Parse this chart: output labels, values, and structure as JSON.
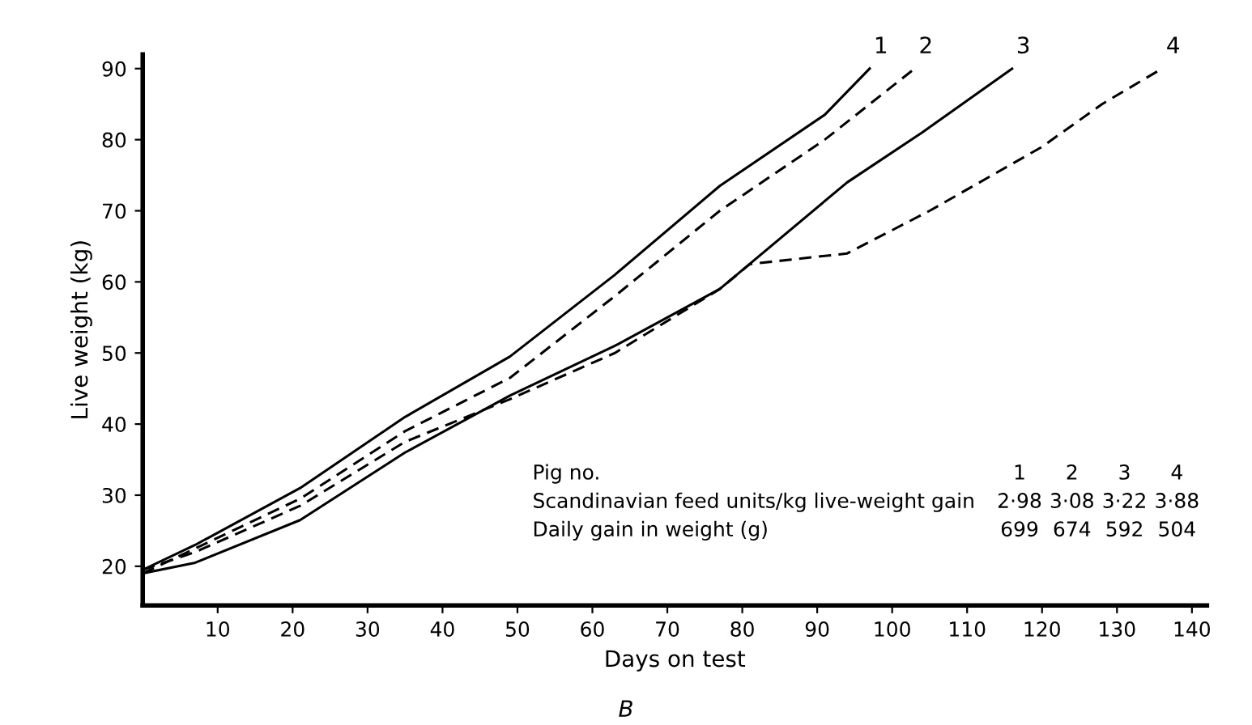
{
  "chart_data": {
    "type": "line",
    "xlabel": "Days on test",
    "ylabel": "Live weight (kg)",
    "xlim": [
      0,
      142
    ],
    "ylim": [
      14.5,
      92
    ],
    "xticks": [
      10,
      20,
      30,
      40,
      50,
      60,
      70,
      80,
      90,
      100,
      110,
      120,
      130,
      140
    ],
    "yticks": [
      20,
      30,
      40,
      50,
      60,
      70,
      80,
      90
    ],
    "grid": false,
    "legend": false,
    "marker": "none",
    "series": [
      {
        "name": "1",
        "color": "#000000",
        "line_style": "solid",
        "x": [
          0,
          7,
          21,
          35,
          49,
          63,
          77,
          91,
          97
        ],
        "values": [
          19.5,
          23,
          31,
          41,
          49.5,
          61,
          73.5,
          83.5,
          90
        ]
      },
      {
        "name": "2",
        "color": "#000000",
        "line_style": "dashed",
        "x": [
          0,
          7,
          21,
          35,
          49,
          63,
          77,
          91,
          103
        ],
        "values": [
          19,
          22.5,
          29.5,
          39,
          46.5,
          58,
          70,
          80,
          90
        ]
      },
      {
        "name": "3",
        "color": "#000000",
        "line_style": "solid",
        "x": [
          0,
          7,
          21,
          35,
          49,
          63,
          77,
          94,
          104,
          116
        ],
        "values": [
          19,
          20.5,
          26.5,
          36,
          44,
          51,
          59,
          74,
          81,
          90
        ]
      },
      {
        "name": "4",
        "color": "#000000",
        "line_style": "dashed",
        "x": [
          0,
          7,
          21,
          35,
          49,
          63,
          77,
          81,
          94,
          105,
          120,
          128,
          136
        ],
        "values": [
          19.5,
          22,
          28.5,
          37.5,
          43.5,
          50,
          59,
          62.5,
          64,
          70,
          79,
          85,
          90
        ]
      }
    ],
    "annotations": [
      "Pig no.",
      "1",
      "2",
      "3",
      "4",
      "Scandinavian feed units/kg live-weight gain",
      "2·98",
      "3·08",
      "3·22",
      "3·88",
      "Daily gain in weight (g)",
      "699",
      "674",
      "592",
      "504",
      "B"
    ]
  }
}
